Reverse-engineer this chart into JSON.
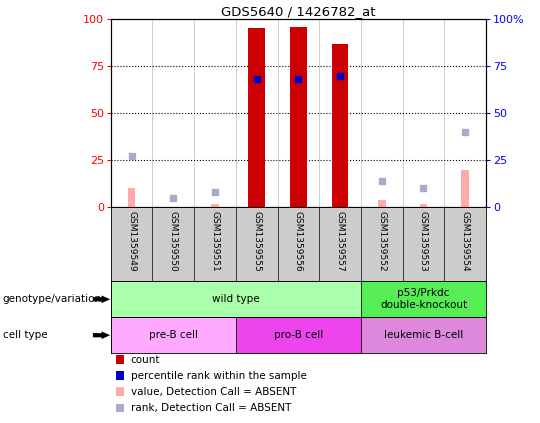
{
  "title": "GDS5640 / 1426782_at",
  "samples": [
    "GSM1359549",
    "GSM1359550",
    "GSM1359551",
    "GSM1359555",
    "GSM1359556",
    "GSM1359557",
    "GSM1359552",
    "GSM1359553",
    "GSM1359554"
  ],
  "counts": [
    0,
    0,
    0,
    95,
    96,
    87,
    0,
    0,
    0
  ],
  "percentile_ranks": [
    null,
    null,
    null,
    68,
    68,
    70,
    null,
    null,
    null
  ],
  "absent_values": [
    10,
    0,
    2,
    null,
    null,
    null,
    4,
    2,
    20
  ],
  "absent_ranks": [
    27,
    5,
    8,
    null,
    null,
    null,
    14,
    10,
    40
  ],
  "ylim": [
    0,
    100
  ],
  "bar_color": "#cc0000",
  "rank_color": "#0000cc",
  "absent_val_color": "#ffaaaa",
  "absent_rank_color": "#aaaacc",
  "bg_color": "#ffffff",
  "label_bg": "#cccccc",
  "genotype_groups": [
    {
      "label": "wild type",
      "start": 0,
      "end": 6,
      "color": "#aaffaa"
    },
    {
      "label": "p53/Prkdc\ndouble-knockout",
      "start": 6,
      "end": 9,
      "color": "#55ee55"
    }
  ],
  "cell_type_groups": [
    {
      "label": "pre-B cell",
      "start": 0,
      "end": 3,
      "color": "#ffaaff"
    },
    {
      "label": "pro-B cell",
      "start": 3,
      "end": 6,
      "color": "#ee44ee"
    },
    {
      "label": "leukemic B-cell",
      "start": 6,
      "end": 9,
      "color": "#dd88dd"
    }
  ],
  "legend_items": [
    {
      "color": "#cc0000",
      "label": "count"
    },
    {
      "color": "#0000cc",
      "label": "percentile rank within the sample"
    },
    {
      "color": "#ffaaaa",
      "label": "value, Detection Call = ABSENT"
    },
    {
      "color": "#aaaacc",
      "label": "rank, Detection Call = ABSENT"
    }
  ],
  "left_labels": [
    "genotype/variation",
    "cell type"
  ],
  "n_samples": 9
}
